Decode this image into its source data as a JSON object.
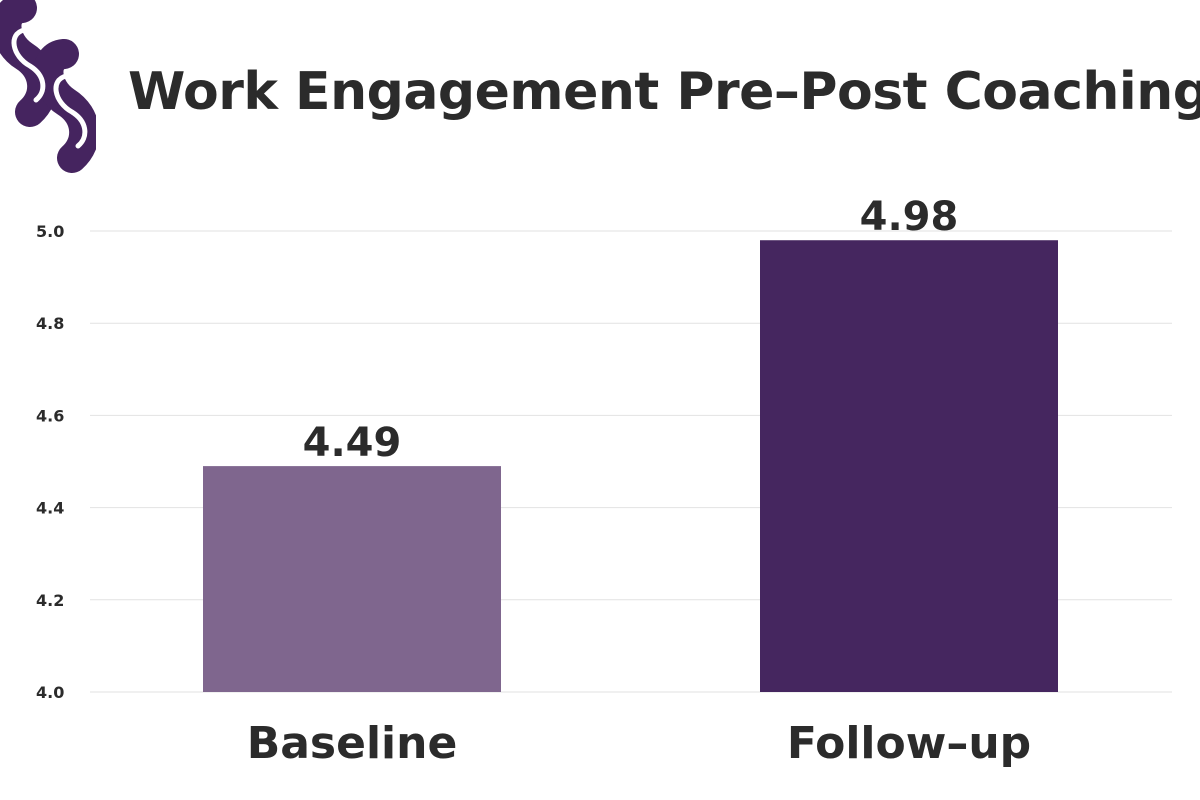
{
  "logo": {
    "icon": "double-s-logo-icon",
    "color": "#45245f"
  },
  "chart_data": {
    "type": "bar",
    "title": "Work Engagement Pre–Post Coaching",
    "xlabel": "",
    "ylabel": "",
    "categories": [
      "Baseline",
      "Follow–up"
    ],
    "values": [
      4.49,
      4.98
    ],
    "value_labels": [
      "4.49",
      "4.98"
    ],
    "bar_colors": [
      "#7f668e",
      "#45265f"
    ],
    "ylim": [
      4.0,
      5.0
    ],
    "yticks": [
      {
        "value": 4.0,
        "label": "4.0"
      },
      {
        "value": 4.2,
        "label": "4.2"
      },
      {
        "value": 4.4,
        "label": "4.4"
      },
      {
        "value": 4.6,
        "label": "4.6"
      },
      {
        "value": 4.8,
        "label": "4.8"
      },
      {
        "value": 5.0,
        "label": "5.0"
      }
    ],
    "grid": true,
    "legend": "none"
  }
}
